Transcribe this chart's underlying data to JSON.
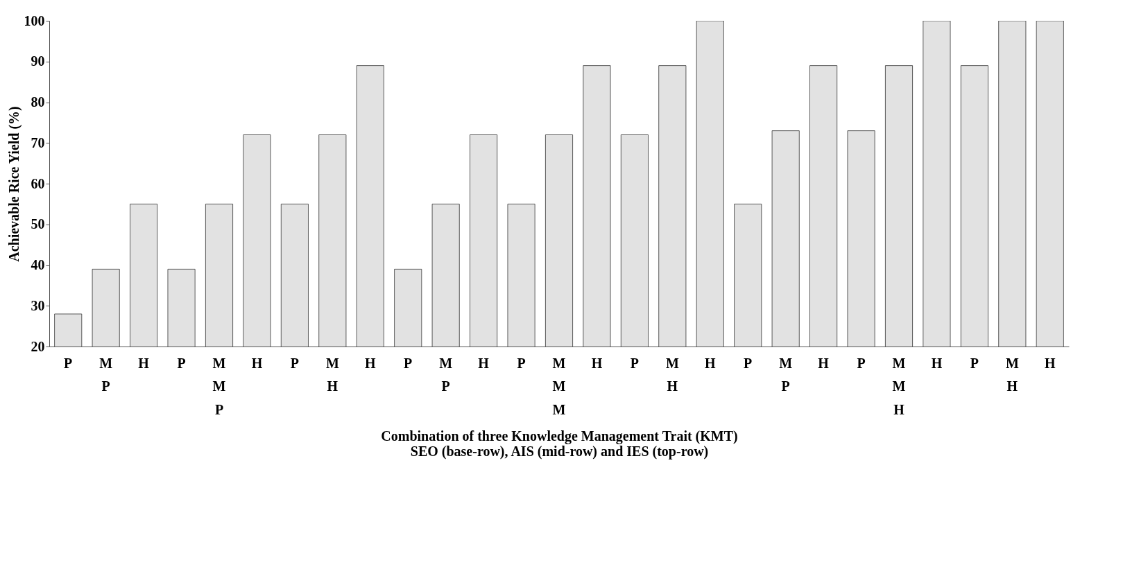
{
  "chart_data": {
    "type": "bar",
    "ylabel": "Achievable Rice Yield (%)",
    "xlabel": "Combination of three Knowledge Management Trait (KMT)\nSEO (base-row), AIS (mid-row) and IES (top-row)",
    "categories": [
      "P",
      "M",
      "H",
      "P",
      "M",
      "H",
      "P",
      "M",
      "H",
      "P",
      "M",
      "H",
      "P",
      "M",
      "H",
      "P",
      "M",
      "H",
      "P",
      "M",
      "H",
      "P",
      "M",
      "H",
      "P",
      "M",
      "H"
    ],
    "values": [
      28,
      39,
      55,
      39,
      55,
      72,
      55,
      72,
      89,
      39,
      55,
      72,
      55,
      72,
      89,
      72,
      89,
      100,
      55,
      73,
      89,
      73,
      89,
      100,
      89,
      100,
      100
    ],
    "color": "#e2e2e2",
    "ylim": [
      20,
      100
    ],
    "yticks": [
      20,
      30,
      40,
      50,
      60,
      70,
      80,
      90,
      100
    ],
    "annotations": [
      "P",
      "M",
      "H",
      "P",
      "M",
      "H",
      "P",
      "M",
      "H",
      "P",
      "M",
      "H"
    ]
  }
}
